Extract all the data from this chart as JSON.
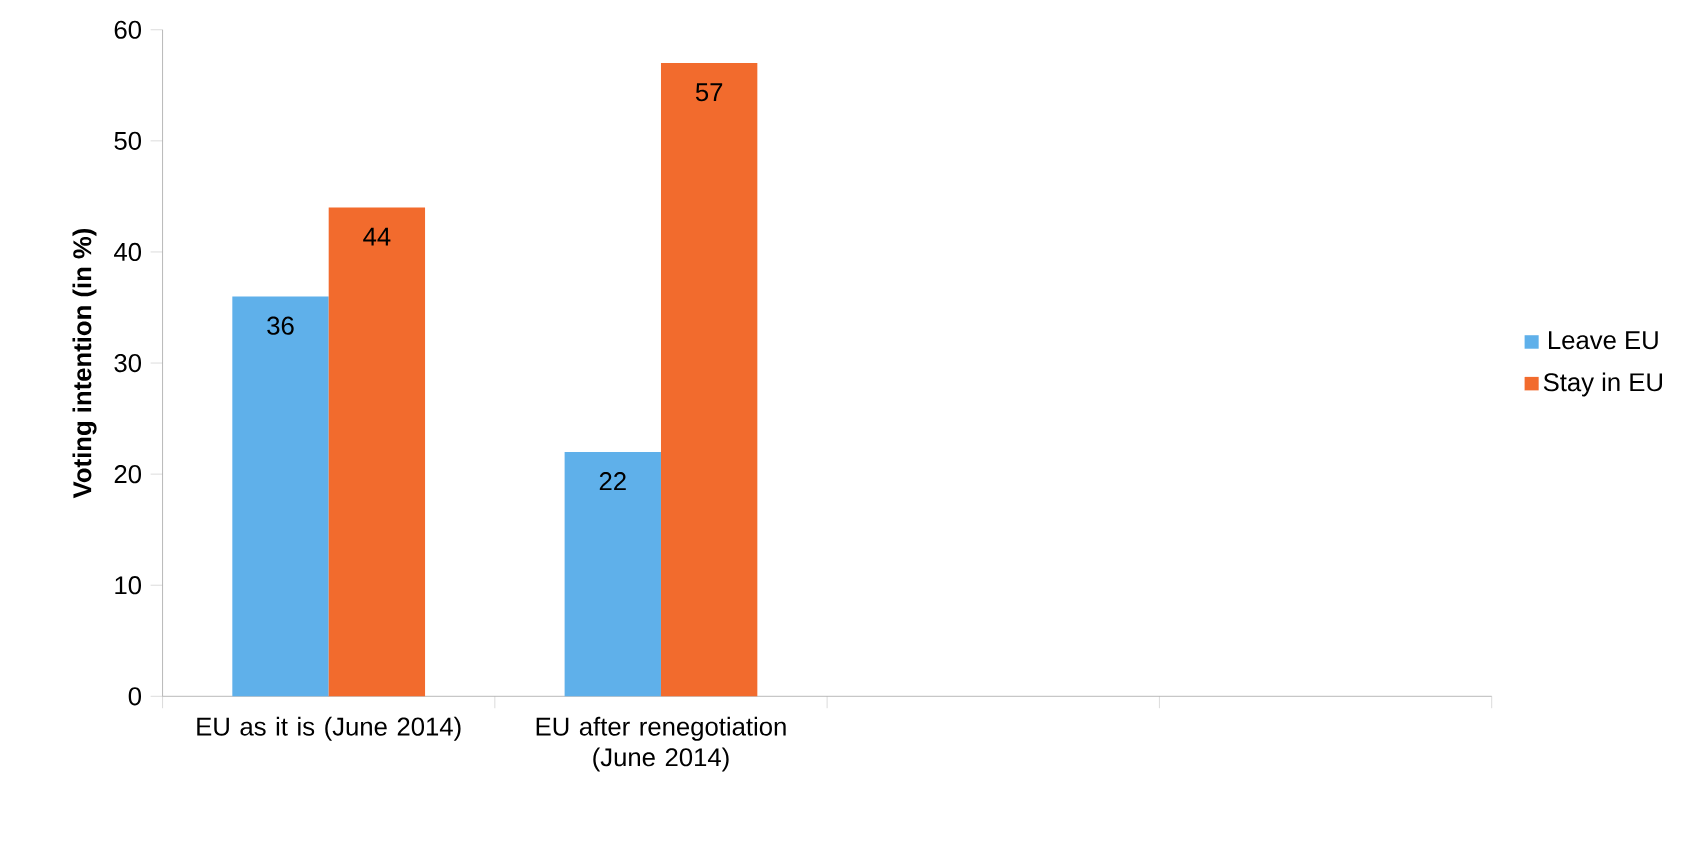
{
  "chart_data": {
    "type": "bar",
    "ylabel": "Voting intention (in %)",
    "categories": [
      "EU as it is (June 2014)",
      "EU after renegotiation (June 2014)",
      null,
      null
    ],
    "series": [
      {
        "name": "Leave EU",
        "color": "#5fb0ea",
        "values": [
          36,
          22,
          null,
          null
        ]
      },
      {
        "name": "Stay in EU",
        "color": "#f26b2d",
        "values": [
          44,
          57,
          null,
          null
        ]
      }
    ],
    "ylim": [
      0,
      60
    ],
    "yticks": [
      0,
      10,
      20,
      30,
      40,
      50,
      60
    ],
    "data_labels": true,
    "legend": "right",
    "grid": false
  }
}
